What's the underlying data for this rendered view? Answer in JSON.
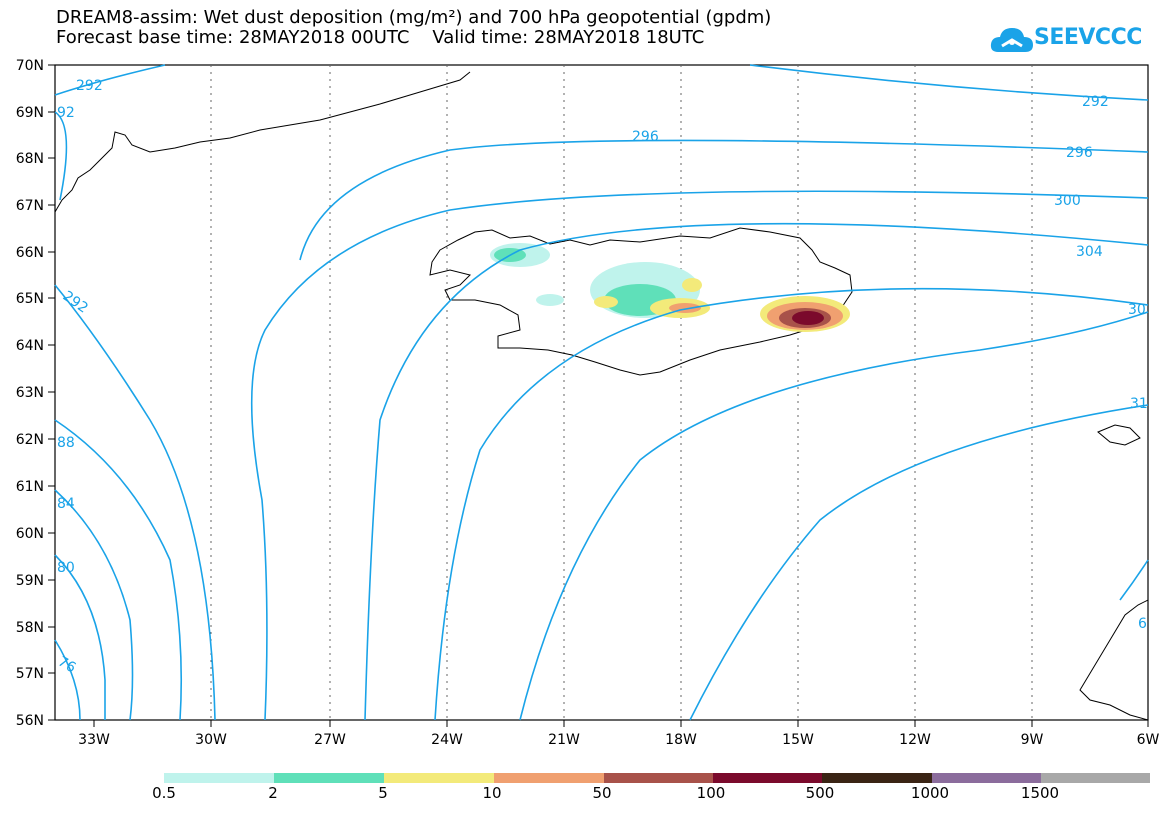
{
  "header": {
    "title": "DREAM8-assim: Wet dust deposition (mg/m²) and 700 hPa geopotential (gpdm)",
    "subtitle": "Forecast base time: 28MAY2018 00UTC    Valid time: 28MAY2018 18UTC"
  },
  "logo": {
    "text": "SEEVCCC",
    "icon": "cloud-icon",
    "color": "#1aa3e8"
  },
  "map": {
    "lat_labels": [
      "70N",
      "69N",
      "68N",
      "67N",
      "66N",
      "65N",
      "64N",
      "63N",
      "62N",
      "61N",
      "60N",
      "59N",
      "58N",
      "57N",
      "56N"
    ],
    "lon_labels": [
      "33W",
      "30W",
      "27W",
      "24W",
      "21W",
      "18W",
      "15W",
      "12W",
      "9W",
      "6W"
    ],
    "contour_labels": [
      "292",
      "292",
      "296",
      "296",
      "300",
      "304",
      "30",
      "31",
      "292",
      "88",
      "84",
      "80",
      "76",
      "6",
      "92"
    ],
    "contour_color": "#1aa3e8",
    "land_outline_color": "#000000"
  },
  "legend": {
    "colors": [
      "#bff3ec",
      "#5fe0b9",
      "#f3ea7a",
      "#f0a070",
      "#a8524a",
      "#7b0a2c",
      "#3a2414",
      "#8b6c9c",
      "#a8a8a8"
    ],
    "labels": [
      "0.5",
      "2",
      "5",
      "10",
      "50",
      "100",
      "500",
      "1000",
      "1500"
    ]
  }
}
